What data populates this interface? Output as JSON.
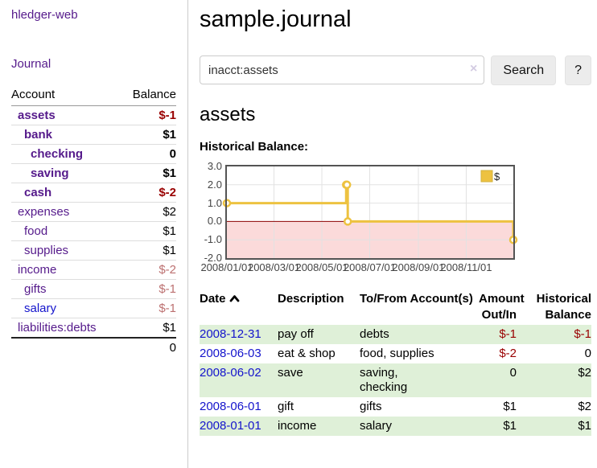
{
  "app": {
    "title": "hledger-web"
  },
  "sidebar": {
    "journal_link": "Journal",
    "table": {
      "headers": {
        "account": "Account",
        "balance": "Balance"
      },
      "rows": [
        {
          "account": "assets",
          "balance": "$-1",
          "depth": 1,
          "bold": true,
          "link": "purple",
          "tone": "neg-strong"
        },
        {
          "account": "bank",
          "balance": "$1",
          "depth": 2,
          "bold": true,
          "link": "purple",
          "tone": ""
        },
        {
          "account": "checking",
          "balance": "0",
          "depth": 3,
          "bold": true,
          "link": "purple",
          "tone": ""
        },
        {
          "account": "saving",
          "balance": "$1",
          "depth": 3,
          "bold": true,
          "link": "purple",
          "tone": ""
        },
        {
          "account": "cash",
          "balance": "$-2",
          "depth": 2,
          "bold": true,
          "link": "purple",
          "tone": "neg-strong"
        },
        {
          "account": "expenses",
          "balance": "$2",
          "depth": 1,
          "bold": false,
          "link": "purple",
          "tone": ""
        },
        {
          "account": "food",
          "balance": "$1",
          "depth": 2,
          "bold": false,
          "link": "purple",
          "tone": ""
        },
        {
          "account": "supplies",
          "balance": "$1",
          "depth": 2,
          "bold": false,
          "link": "purple",
          "tone": ""
        },
        {
          "account": "income",
          "balance": "$-2",
          "depth": 1,
          "bold": false,
          "link": "purple",
          "tone": "neg-soft"
        },
        {
          "account": "gifts",
          "balance": "$-1",
          "depth": 2,
          "bold": false,
          "link": "purple",
          "tone": "neg-soft"
        },
        {
          "account": "salary",
          "balance": "$-1",
          "depth": 2,
          "bold": false,
          "link": "blue",
          "tone": "neg-soft"
        },
        {
          "account": "liabilities:debts",
          "balance": "$1",
          "depth": 1,
          "bold": false,
          "link": "purple",
          "tone": ""
        }
      ],
      "total": "0"
    }
  },
  "main": {
    "title": "sample.journal",
    "search": {
      "value": "inacct:assets",
      "clear_icon": "×",
      "search_button": "Search",
      "help_button": "?"
    },
    "account_heading": "assets",
    "chart_heading": "Historical Balance:"
  },
  "chart_data": {
    "type": "line",
    "title": "Historical Balance:",
    "series": [
      {
        "name": "$",
        "color": "#edc240",
        "step": true,
        "points": [
          [
            "2008-01-01",
            1
          ],
          [
            "2008-06-01",
            2
          ],
          [
            "2008-06-02",
            2
          ],
          [
            "2008-06-03",
            0
          ],
          [
            "2008-12-31",
            -1
          ]
        ]
      }
    ],
    "x_range": [
      "2008-01-01",
      "2008-12-31"
    ],
    "ylim": [
      -2,
      3
    ],
    "y_ticks": [
      {
        "v": 3,
        "label": "3.0"
      },
      {
        "v": 2,
        "label": "2.0"
      },
      {
        "v": 1,
        "label": "1.0"
      },
      {
        "v": 0,
        "label": "0.0"
      },
      {
        "v": -1,
        "label": "-1.0"
      },
      {
        "v": -2,
        "label": "-2.0"
      }
    ],
    "x_ticks": [
      {
        "date": "2008-01-01",
        "label": "2008/01/01"
      },
      {
        "date": "2008-03-01",
        "label": "2008/03/01"
      },
      {
        "date": "2008-05-01",
        "label": "2008/05/01"
      },
      {
        "date": "2008-07-01",
        "label": "2008/07/01"
      },
      {
        "date": "2008-09-01",
        "label": "2008/09/01"
      },
      {
        "date": "2008-11-01",
        "label": "2008/11/01"
      }
    ],
    "grid": true,
    "legend_position": "top-right",
    "colors": {
      "border": "#545454",
      "gridline": "#e2e2e2",
      "negative_region": "#fbdada",
      "zero_line": "#8b0000",
      "marker_fill": "#ffffff",
      "legend_swatch_border": "#d2b13e"
    }
  },
  "transactions": {
    "headers": {
      "date": "Date",
      "description": "Description",
      "tofrom": "To/From Account(s)",
      "amount": "Amount Out/In",
      "balance": "Historical Balance"
    },
    "rows": [
      {
        "date": "2008-12-31",
        "description": "pay off",
        "accounts": "debts",
        "amount": "$-1",
        "amount_neg": true,
        "balance": "$-1",
        "balance_neg": true
      },
      {
        "date": "2008-06-03",
        "description": "eat & shop",
        "accounts": "food, supplies",
        "amount": "$-2",
        "amount_neg": true,
        "balance": "0",
        "balance_neg": false
      },
      {
        "date": "2008-06-02",
        "description": "save",
        "accounts": "saving, checking",
        "amount": "0",
        "amount_neg": false,
        "balance": "$2",
        "balance_neg": false
      },
      {
        "date": "2008-06-01",
        "description": "gift",
        "accounts": "gifts",
        "amount": "$1",
        "amount_neg": false,
        "balance": "$2",
        "balance_neg": false
      },
      {
        "date": "2008-01-01",
        "description": "income",
        "accounts": "salary",
        "amount": "$1",
        "amount_neg": false,
        "balance": "$1",
        "balance_neg": false
      }
    ]
  },
  "ui_colors": {
    "link_purple": "#551a8b",
    "link_blue": "#1414cc",
    "negative_strong": "#990000",
    "negative_soft": "#bc7070",
    "row_green": "#dff0d8"
  }
}
